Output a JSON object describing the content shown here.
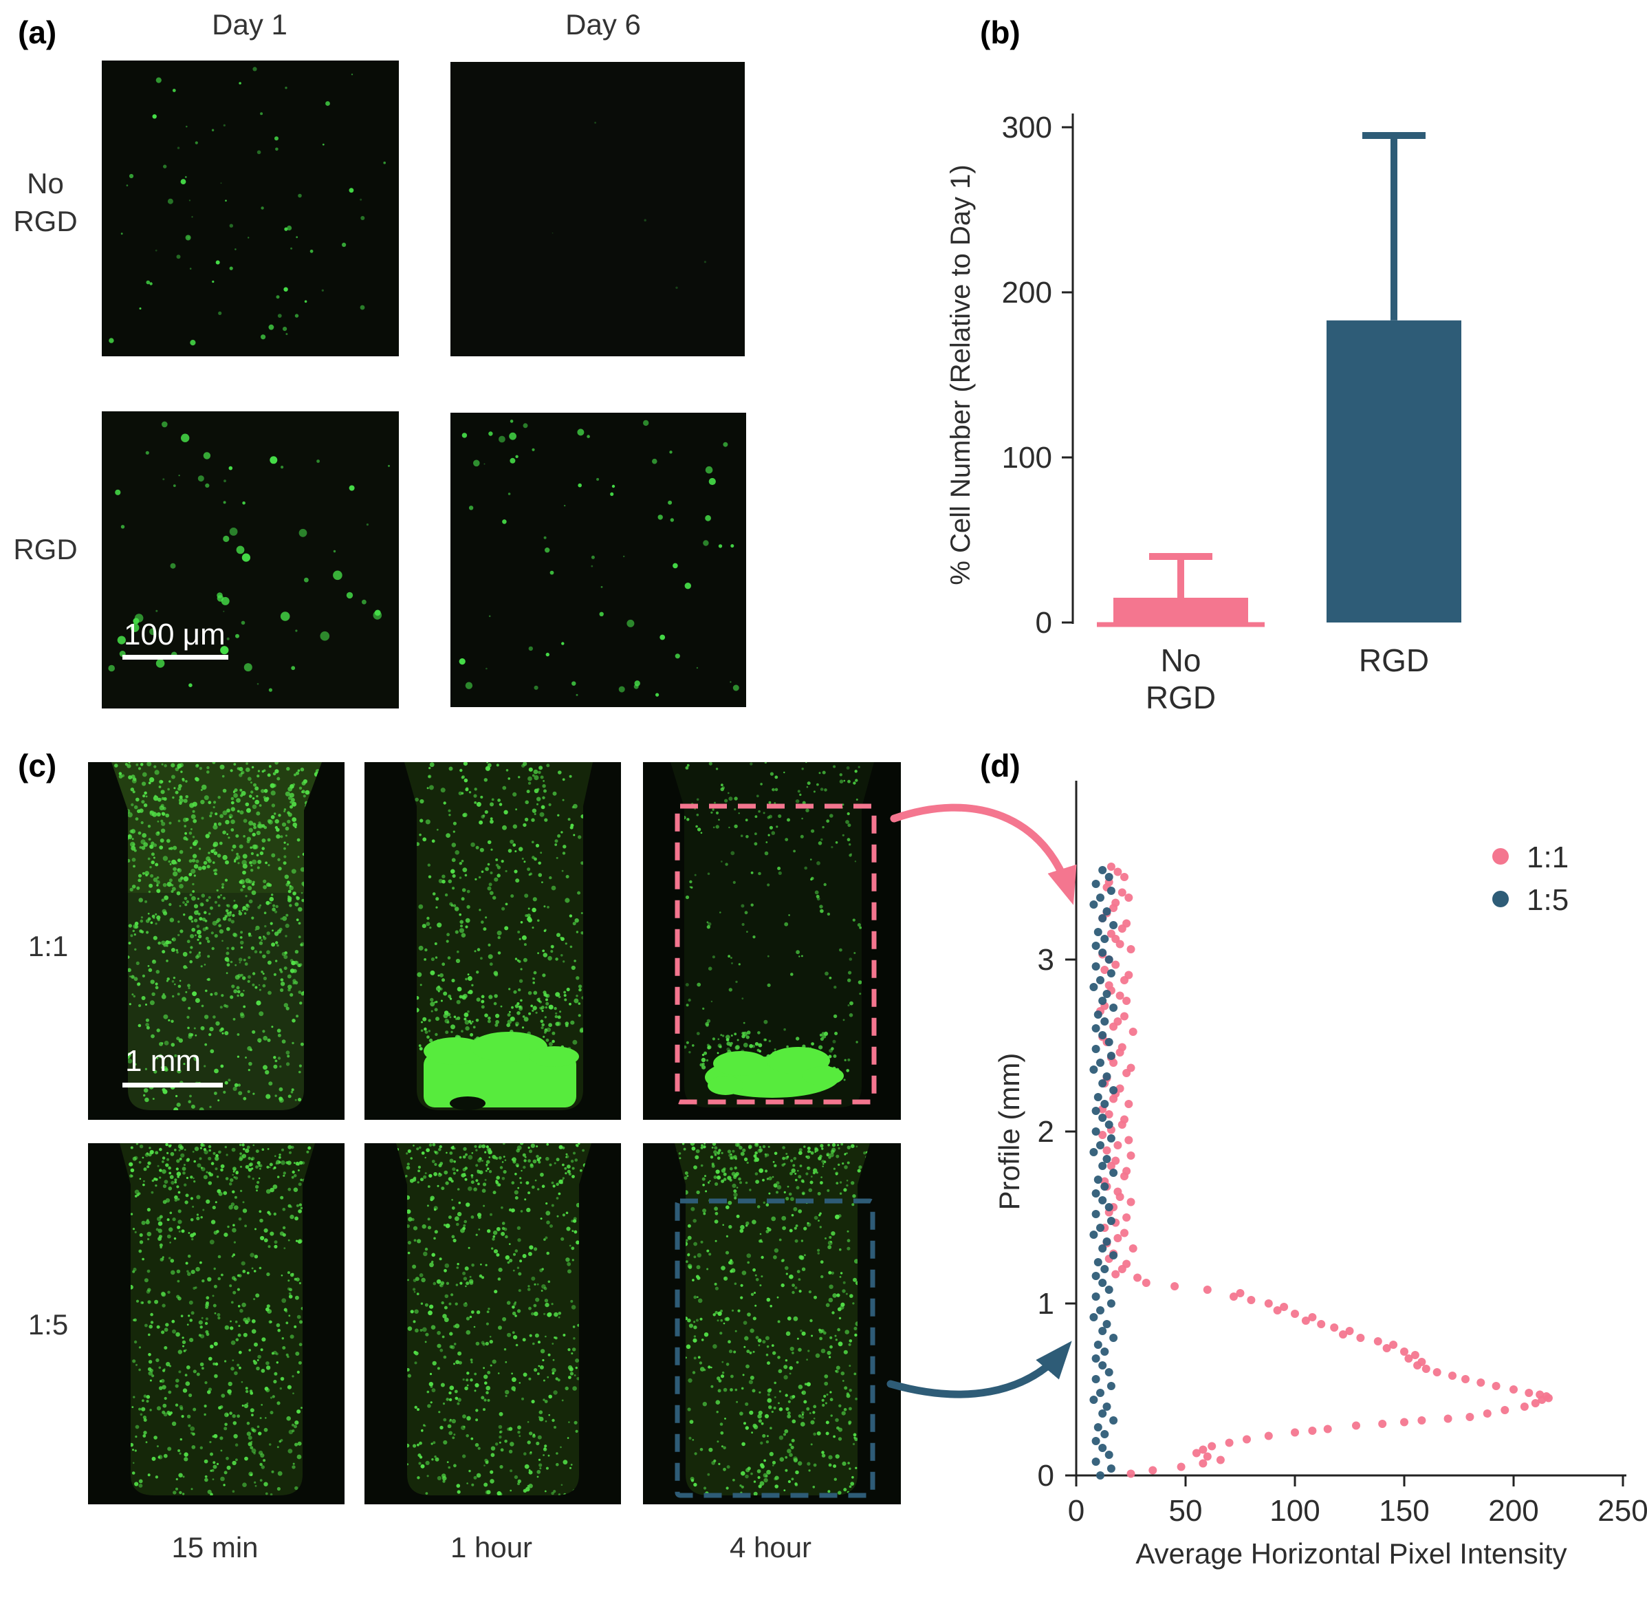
{
  "panels": {
    "a": {
      "label": "(a)",
      "columns": [
        "Day 1",
        "Day 6"
      ],
      "rows": [
        [
          "No",
          "RGD"
        ],
        [
          "RGD"
        ]
      ],
      "scale_bar": "100 μm"
    },
    "b": {
      "label": "(b)"
    },
    "c": {
      "label": "(c)",
      "rows": [
        "1:1",
        "1:5"
      ],
      "columns": [
        "15 min",
        "1 hour",
        "4 hour"
      ],
      "scale_bar": "1 mm"
    },
    "d": {
      "label": "(d)"
    }
  },
  "colors": {
    "pink": "#F4768F",
    "blue": "#2E5C77",
    "green": "#46DE48",
    "bright_green": "#57EB3D"
  },
  "chart_data": [
    {
      "id": "panel-b-bar",
      "type": "bar",
      "categories": [
        "No RGD",
        "RGD"
      ],
      "category_lines": [
        [
          "No",
          "RGD"
        ],
        [
          "RGD"
        ]
      ],
      "values": [
        15,
        183
      ],
      "error_up": [
        25,
        112
      ],
      "ylabel": "% Cell Number (Relative to Day 1)",
      "yticks": [
        0,
        100,
        200,
        300
      ],
      "ylim": [
        0,
        310
      ],
      "bar_colors": [
        "#F4768F",
        "#2E5C77"
      ],
      "grid": false
    },
    {
      "id": "panel-d-scatter",
      "type": "scatter",
      "xlabel": "Average Horizontal Pixel Intensity",
      "ylabel": "Profile (mm)",
      "xticks": [
        0,
        50,
        100,
        150,
        200,
        250
      ],
      "yticks": [
        0,
        1,
        2,
        3
      ],
      "xlim": [
        0,
        250
      ],
      "ylim": [
        0,
        4.0
      ],
      "legend_position": "top-right",
      "grid": false,
      "series": [
        {
          "name": "1:1",
          "color": "#F4768F",
          "points": [
            [
              16,
              3.54
            ],
            [
              22,
              3.48
            ],
            [
              14,
              3.42
            ],
            [
              24,
              3.36
            ],
            [
              17,
              3.3
            ],
            [
              12,
              3.24
            ],
            [
              21,
              3.18
            ],
            [
              18,
              3.12
            ],
            [
              25,
              3.06
            ],
            [
              15,
              3.0
            ],
            [
              13,
              2.94
            ],
            [
              22,
              2.88
            ],
            [
              16,
              2.82
            ],
            [
              23,
              2.76
            ],
            [
              11,
              2.7
            ],
            [
              19,
              2.64
            ],
            [
              26,
              2.58
            ],
            [
              14,
              2.52
            ],
            [
              20,
              2.46
            ],
            [
              17,
              2.4
            ],
            [
              23,
              2.34
            ],
            [
              13,
              2.28
            ],
            [
              18,
              2.22
            ],
            [
              24,
              2.16
            ],
            [
              15,
              2.1
            ],
            [
              21,
              2.04
            ],
            [
              12,
              1.98
            ],
            [
              19,
              1.92
            ],
            [
              25,
              1.86
            ],
            [
              16,
              1.8
            ],
            [
              22,
              1.74
            ],
            [
              14,
              1.68
            ],
            [
              20,
              1.62
            ],
            [
              17,
              1.56
            ],
            [
              23,
              1.5
            ],
            [
              13,
              1.44
            ],
            [
              19,
              1.38
            ],
            [
              26,
              1.32
            ],
            [
              15,
              1.26
            ],
            [
              21,
              1.2
            ],
            [
              28,
              1.15
            ],
            [
              19,
              3.51
            ],
            [
              15,
              3.45
            ],
            [
              21,
              3.39
            ],
            [
              18,
              3.33
            ],
            [
              14,
              3.27
            ],
            [
              23,
              3.21
            ],
            [
              16,
              3.15
            ],
            [
              20,
              3.09
            ],
            [
              12,
              3.03
            ],
            [
              18,
              2.97
            ],
            [
              24,
              2.91
            ],
            [
              15,
              2.85
            ],
            [
              20,
              2.79
            ],
            [
              13,
              2.73
            ],
            [
              22,
              2.67
            ],
            [
              17,
              2.61
            ],
            [
              12,
              2.55
            ],
            [
              21,
              2.49
            ],
            [
              16,
              2.43
            ],
            [
              25,
              2.37
            ],
            [
              14,
              2.31
            ],
            [
              20,
              2.25
            ],
            [
              17,
              2.19
            ],
            [
              12,
              2.13
            ],
            [
              22,
              2.07
            ],
            [
              16,
              2.01
            ],
            [
              24,
              1.95
            ],
            [
              14,
              1.89
            ],
            [
              18,
              1.83
            ],
            [
              23,
              1.77
            ],
            [
              13,
              1.71
            ],
            [
              19,
              1.65
            ],
            [
              25,
              1.59
            ],
            [
              15,
              1.53
            ],
            [
              18,
              1.47
            ],
            [
              22,
              1.41
            ],
            [
              14,
              1.35
            ],
            [
              17,
              1.29
            ],
            [
              23,
              1.23
            ],
            [
              18,
              1.17
            ],
            [
              32,
              1.12
            ],
            [
              45,
              1.1
            ],
            [
              60,
              1.08
            ],
            [
              75,
              1.06
            ],
            [
              72,
              1.04
            ],
            [
              80,
              1.02
            ],
            [
              88,
              1.0
            ],
            [
              95,
              0.98
            ],
            [
              92,
              0.96
            ],
            [
              100,
              0.94
            ],
            [
              108,
              0.92
            ],
            [
              105,
              0.9
            ],
            [
              112,
              0.88
            ],
            [
              118,
              0.86
            ],
            [
              125,
              0.84
            ],
            [
              122,
              0.82
            ],
            [
              130,
              0.8
            ],
            [
              138,
              0.78
            ],
            [
              145,
              0.76
            ],
            [
              142,
              0.74
            ],
            [
              150,
              0.72
            ],
            [
              155,
              0.7
            ],
            [
              152,
              0.68
            ],
            [
              158,
              0.66
            ],
            [
              156,
              0.64
            ],
            [
              160,
              0.62
            ],
            [
              165,
              0.6
            ],
            [
              172,
              0.58
            ],
            [
              178,
              0.56
            ],
            [
              185,
              0.54
            ],
            [
              192,
              0.52
            ],
            [
              200,
              0.5
            ],
            [
              207,
              0.48
            ],
            [
              212,
              0.47
            ],
            [
              215,
              0.46
            ],
            [
              216,
              0.45
            ],
            [
              213,
              0.44
            ],
            [
              210,
              0.42
            ],
            [
              205,
              0.4
            ],
            [
              196,
              0.38
            ],
            [
              188,
              0.36
            ],
            [
              180,
              0.34
            ],
            [
              170,
              0.33
            ],
            [
              158,
              0.32
            ],
            [
              150,
              0.31
            ],
            [
              140,
              0.3
            ],
            [
              128,
              0.29
            ],
            [
              115,
              0.27
            ],
            [
              108,
              0.26
            ],
            [
              100,
              0.25
            ],
            [
              88,
              0.23
            ],
            [
              78,
              0.21
            ],
            [
              70,
              0.19
            ],
            [
              62,
              0.17
            ],
            [
              58,
              0.15
            ],
            [
              55,
              0.13
            ],
            [
              60,
              0.11
            ],
            [
              66,
              0.09
            ],
            [
              58,
              0.07
            ],
            [
              48,
              0.05
            ],
            [
              35,
              0.03
            ],
            [
              25,
              0.01
            ]
          ]
        },
        {
          "name": "1:5",
          "color": "#2E5C77",
          "points": [
            [
              12,
              3.52
            ],
            [
              15,
              3.48
            ],
            [
              9,
              3.44
            ],
            [
              16,
              3.4
            ],
            [
              11,
              3.36
            ],
            [
              8,
              3.32
            ],
            [
              14,
              3.28
            ],
            [
              12,
              3.24
            ],
            [
              17,
              3.2
            ],
            [
              10,
              3.16
            ],
            [
              13,
              3.12
            ],
            [
              9,
              3.08
            ],
            [
              12,
              3.04
            ],
            [
              15,
              3.0
            ],
            [
              9,
              2.96
            ],
            [
              16,
              2.92
            ],
            [
              11,
              2.88
            ],
            [
              8,
              2.84
            ],
            [
              14,
              2.8
            ],
            [
              12,
              2.76
            ],
            [
              17,
              2.72
            ],
            [
              10,
              2.68
            ],
            [
              13,
              2.64
            ],
            [
              9,
              2.6
            ],
            [
              12,
              2.56
            ],
            [
              15,
              2.52
            ],
            [
              9,
              2.48
            ],
            [
              16,
              2.44
            ],
            [
              11,
              2.4
            ],
            [
              8,
              2.36
            ],
            [
              14,
              2.32
            ],
            [
              12,
              2.28
            ],
            [
              17,
              2.24
            ],
            [
              10,
              2.2
            ],
            [
              13,
              2.16
            ],
            [
              9,
              2.12
            ],
            [
              12,
              2.08
            ],
            [
              15,
              2.04
            ],
            [
              9,
              2.0
            ],
            [
              16,
              1.96
            ],
            [
              11,
              1.92
            ],
            [
              8,
              1.88
            ],
            [
              14,
              1.84
            ],
            [
              12,
              1.8
            ],
            [
              17,
              1.76
            ],
            [
              10,
              1.72
            ],
            [
              13,
              1.68
            ],
            [
              9,
              1.64
            ],
            [
              12,
              1.6
            ],
            [
              15,
              1.56
            ],
            [
              9,
              1.52
            ],
            [
              16,
              1.48
            ],
            [
              11,
              1.44
            ],
            [
              8,
              1.4
            ],
            [
              14,
              1.36
            ],
            [
              12,
              1.32
            ],
            [
              17,
              1.28
            ],
            [
              10,
              1.24
            ],
            [
              13,
              1.2
            ],
            [
              9,
              1.16
            ],
            [
              12,
              1.12
            ],
            [
              15,
              1.08
            ],
            [
              9,
              1.04
            ],
            [
              16,
              1.0
            ],
            [
              11,
              0.96
            ],
            [
              8,
              0.92
            ],
            [
              14,
              0.88
            ],
            [
              12,
              0.84
            ],
            [
              17,
              0.8
            ],
            [
              10,
              0.76
            ],
            [
              13,
              0.72
            ],
            [
              9,
              0.68
            ],
            [
              12,
              0.64
            ],
            [
              15,
              0.6
            ],
            [
              9,
              0.56
            ],
            [
              16,
              0.52
            ],
            [
              11,
              0.48
            ],
            [
              8,
              0.44
            ],
            [
              14,
              0.4
            ],
            [
              12,
              0.36
            ],
            [
              17,
              0.32
            ],
            [
              10,
              0.28
            ],
            [
              13,
              0.24
            ],
            [
              9,
              0.2
            ],
            [
              12,
              0.16
            ],
            [
              15,
              0.12
            ],
            [
              9,
              0.08
            ],
            [
              16,
              0.04
            ],
            [
              11,
              0.0
            ]
          ]
        }
      ]
    }
  ]
}
